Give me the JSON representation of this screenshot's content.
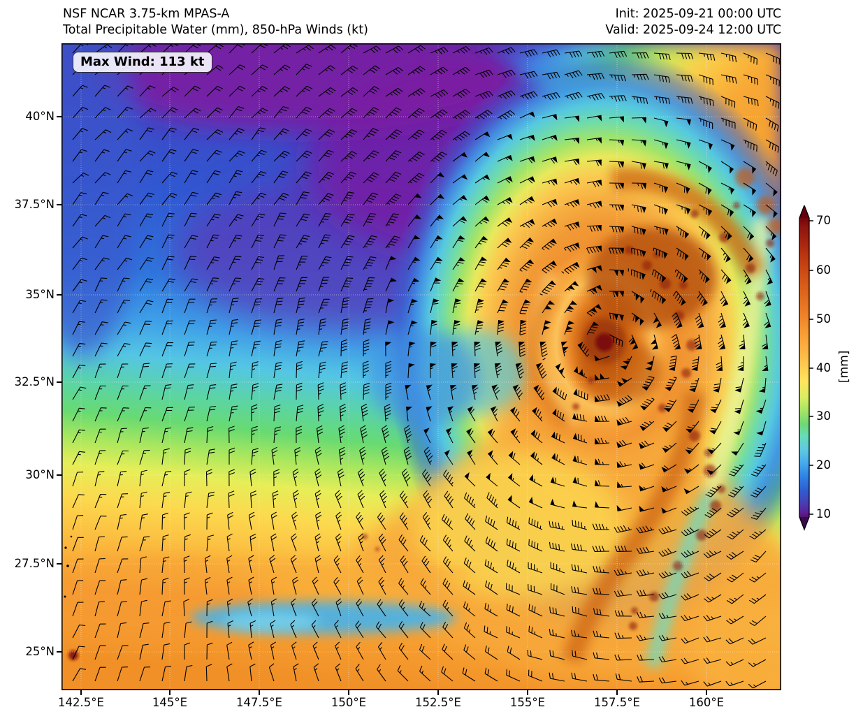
{
  "header": {
    "model_title": "NSF NCAR 3.75-km MPAS-A",
    "field_title": "Total Precipitable Water (mm), 850-hPa Winds (kt)",
    "init_time": "Init: 2025-09-21 00:00 UTC",
    "valid_time": "Valid: 2025-09-24 12:00 UTC"
  },
  "map": {
    "max_wind_annotation": "Max Wind: 113 kt",
    "x_tick_labels": [
      "142.5°E",
      "145°E",
      "147.5°E",
      "150°E",
      "152.5°E",
      "155°E",
      "157.5°E",
      "160°E"
    ],
    "y_tick_labels": [
      "40°N",
      "37.5°N",
      "35°N",
      "32.5°N",
      "30°N",
      "27.5°N",
      "25°N"
    ]
  },
  "colorbar": {
    "unit_label": "[mm]",
    "tick_labels": [
      "70",
      "60",
      "50",
      "40",
      "30",
      "20",
      "10"
    ]
  },
  "chart_data": {
    "type": "heatmap",
    "title": "NSF NCAR 3.75-km MPAS-A",
    "subtitle": "Total Precipitable Water (mm), 850-hPa Winds (kt)",
    "init_time": "2025-09-21 00:00 UTC",
    "valid_time": "2025-09-24 12:00 UTC",
    "annotation": "Max Wind: 113 kt",
    "max_wind_kt": 113,
    "field": "Total Precipitable Water (mm)",
    "overlay": "850-hPa wind barbs (kt)",
    "x_axis": {
      "type": "longitude",
      "tick_labels": [
        "142.5°E",
        "145°E",
        "147.5°E",
        "150°E",
        "152.5°E",
        "155°E",
        "157.5°E",
        "160°E"
      ]
    },
    "y_axis": {
      "type": "latitude",
      "tick_labels": [
        "40°N",
        "37.5°N",
        "35°N",
        "32.5°N",
        "30°N",
        "27.5°N",
        "25°N"
      ]
    },
    "colorbar": {
      "label": "[mm]",
      "ticks": [
        70,
        60,
        50,
        40,
        30,
        20,
        10
      ],
      "range_min": 8,
      "range_max": 72,
      "extend": "both",
      "colormap_stops": [
        [
          8,
          "#53156e"
        ],
        [
          10,
          "#5c2098"
        ],
        [
          13,
          "#4740b8"
        ],
        [
          16,
          "#2f5ed2"
        ],
        [
          20,
          "#2f82e4"
        ],
        [
          24,
          "#45aaee"
        ],
        [
          28,
          "#5fc9e2"
        ],
        [
          31,
          "#66dcb9"
        ],
        [
          34,
          "#6ed877"
        ],
        [
          38,
          "#a5e565"
        ],
        [
          42,
          "#d9ee62"
        ],
        [
          45,
          "#fee55c"
        ],
        [
          48,
          "#fdc94e"
        ],
        [
          51,
          "#fcb243"
        ],
        [
          54,
          "#f89a33"
        ],
        [
          57,
          "#f08328"
        ],
        [
          60,
          "#e26c1e"
        ],
        [
          63,
          "#d25317"
        ],
        [
          66,
          "#c03b12"
        ],
        [
          69,
          "#a6240f"
        ],
        [
          72,
          "#74050d"
        ]
      ]
    },
    "features": {
      "cyclone": "intense typhoon with dark-red eye near 156.9°E, 33.8°N; orange/red spiral rainbands (55-70+ mm)",
      "dry_air": "dark blue/purple dry slot covering the northwest quadrant (10-20 mm)",
      "moisture_arc": "cyan-green-yellow moisture gradient arc wrapping the west and north sides of the storm",
      "wind_field": "cyclonic (counterclockwise) 850-hPa wind barbs, pennants (50 kt) near the core"
    }
  }
}
